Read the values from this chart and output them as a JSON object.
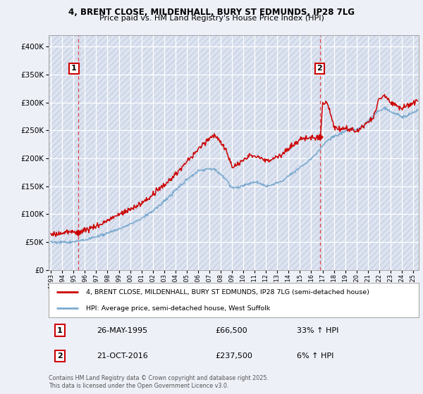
{
  "title1": "4, BRENT CLOSE, MILDENHALL, BURY ST EDMUNDS, IP28 7LG",
  "title2": "Price paid vs. HM Land Registry's House Price Index (HPI)",
  "bg_color": "#eef0f8",
  "plot_bg_color": "#dde3f0",
  "hatch_color": "#b8c4d8",
  "grid_color": "#ffffff",
  "red_line_color": "#cc0000",
  "blue_line_color": "#7aaad0",
  "dashed_line_color": "#dd3333",
  "marker1_x": 1995.4,
  "marker2_x": 2016.8,
  "marker1_y": 66500,
  "marker2_y": 237500,
  "legend1": "4, BRENT CLOSE, MILDENHALL, BURY ST EDMUNDS, IP28 7LG (semi-detached house)",
  "legend2": "HPI: Average price, semi-detached house, West Suffolk",
  "table_row1": [
    "1",
    "26-MAY-1995",
    "£66,500",
    "33% ↑ HPI"
  ],
  "table_row2": [
    "2",
    "21-OCT-2016",
    "£237,500",
    "6% ↑ HPI"
  ],
  "footer": "Contains HM Land Registry data © Crown copyright and database right 2025.\nThis data is licensed under the Open Government Licence v3.0.",
  "ylim": [
    0,
    420000
  ],
  "yticks": [
    0,
    50000,
    100000,
    150000,
    200000,
    250000,
    300000,
    350000,
    400000
  ],
  "xlim": [
    1992.8,
    2025.5
  ],
  "xticks": [
    1993,
    1994,
    1995,
    1996,
    1997,
    1998,
    1999,
    2000,
    2001,
    2002,
    2003,
    2004,
    2005,
    2006,
    2007,
    2008,
    2009,
    2010,
    2011,
    2012,
    2013,
    2014,
    2015,
    2016,
    2017,
    2018,
    2019,
    2020,
    2021,
    2022,
    2023,
    2024,
    2025
  ]
}
